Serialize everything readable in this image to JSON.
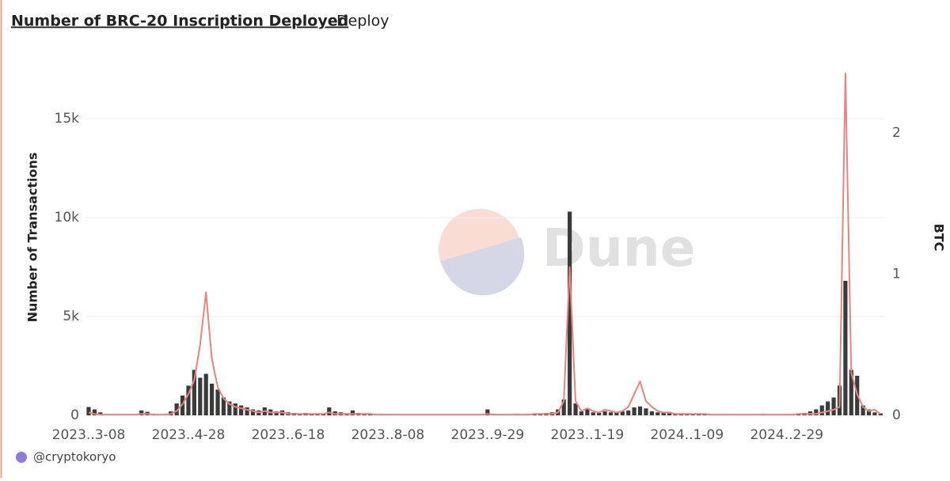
{
  "chart_data": {
    "type": "bar-line",
    "title": "Number of BRC-20 Inscription Deployed",
    "tab": "Deploy",
    "watermark": "Dune",
    "credit": "@cryptokoryo",
    "y_label": "Number of Transactions",
    "y2_label": "BTC",
    "categories": [
      "2023..3-08",
      null,
      null,
      null,
      null,
      null,
      null,
      null,
      null,
      null,
      null,
      null,
      null,
      null,
      null,
      null,
      null,
      "2023..4-28",
      null,
      null,
      null,
      null,
      null,
      null,
      null,
      null,
      null,
      null,
      null,
      null,
      null,
      null,
      null,
      null,
      "2023..6-18",
      null,
      null,
      null,
      null,
      null,
      null,
      null,
      null,
      null,
      null,
      null,
      null,
      null,
      null,
      null,
      null,
      "2023..8-08",
      null,
      null,
      null,
      null,
      null,
      null,
      null,
      null,
      null,
      null,
      null,
      null,
      null,
      null,
      null,
      null,
      "2023..9-29",
      null,
      null,
      null,
      null,
      null,
      null,
      null,
      null,
      null,
      null,
      null,
      null,
      null,
      null,
      null,
      null,
      "2023..1-19",
      null,
      null,
      null,
      null,
      null,
      null,
      null,
      null,
      null,
      null,
      null,
      null,
      null,
      null,
      null,
      null,
      "2024..1-09",
      null,
      null,
      null,
      null,
      null,
      null,
      null,
      null,
      null,
      null,
      null,
      null,
      null,
      null,
      null,
      null,
      "2024..2-29",
      null,
      null,
      null,
      null,
      null,
      null,
      null,
      null,
      null,
      null,
      null,
      null,
      null,
      null,
      null,
      null
    ],
    "series": [
      {
        "type": "bar",
        "color": "#3a3a3a",
        "values": [
          420,
          300,
          150,
          60,
          40,
          30,
          20,
          30,
          50,
          250,
          180,
          80,
          40,
          60,
          200,
          600,
          1000,
          1500,
          2300,
          1900,
          2100,
          1600,
          1300,
          900,
          700,
          600,
          500,
          400,
          300,
          250,
          400,
          300,
          200,
          250,
          150,
          120,
          100,
          120,
          80,
          100,
          90,
          400,
          200,
          150,
          100,
          250,
          120,
          90,
          80,
          60,
          70,
          60,
          50,
          40,
          50,
          40,
          30,
          40,
          30,
          40,
          30,
          40,
          50,
          30,
          40,
          50,
          40,
          60,
          300,
          80,
          50,
          60,
          50,
          80,
          60,
          80,
          100,
          80,
          120,
          150,
          300,
          800,
          10300,
          600,
          200,
          300,
          150,
          120,
          200,
          150,
          180,
          200,
          250,
          400,
          450,
          350,
          200,
          150,
          120,
          100,
          80,
          60,
          50,
          60,
          40,
          50,
          40,
          50,
          60,
          40,
          50,
          40,
          50,
          60,
          40,
          80,
          60,
          40,
          50,
          40,
          60,
          80,
          120,
          200,
          300,
          500,
          700,
          900,
          1500,
          6800,
          2300,
          2000,
          500,
          300,
          150,
          100
        ]
      },
      {
        "type": "line",
        "axis": "y2",
        "color": "#e8847f",
        "values": [
          0.02,
          0.01,
          0.005,
          0.005,
          0.005,
          0.005,
          0.005,
          0.005,
          0.005,
          0.01,
          0.01,
          0.005,
          0.005,
          0.005,
          0.01,
          0.03,
          0.08,
          0.15,
          0.25,
          0.5,
          0.87,
          0.4,
          0.2,
          0.12,
          0.08,
          0.06,
          0.05,
          0.04,
          0.03,
          0.02,
          0.03,
          0.02,
          0.02,
          0.02,
          0.01,
          0.01,
          0.01,
          0.01,
          0.01,
          0.01,
          0.01,
          0.02,
          0.01,
          0.01,
          0.01,
          0.01,
          0.01,
          0.01,
          0.01,
          0.005,
          0.005,
          0.005,
          0.005,
          0.005,
          0.005,
          0.005,
          0.005,
          0.005,
          0.005,
          0.005,
          0.005,
          0.005,
          0.005,
          0.005,
          0.005,
          0.005,
          0.005,
          0.005,
          0.01,
          0.005,
          0.005,
          0.005,
          0.005,
          0.005,
          0.005,
          0.005,
          0.01,
          0.01,
          0.01,
          0.01,
          0.02,
          0.1,
          1.05,
          0.1,
          0.03,
          0.05,
          0.03,
          0.02,
          0.04,
          0.03,
          0.02,
          0.03,
          0.06,
          0.15,
          0.24,
          0.1,
          0.06,
          0.03,
          0.02,
          0.02,
          0.01,
          0.01,
          0.01,
          0.01,
          0.01,
          0.01,
          0.005,
          0.005,
          0.005,
          0.005,
          0.005,
          0.005,
          0.005,
          0.005,
          0.005,
          0.005,
          0.005,
          0.005,
          0.005,
          0.005,
          0.005,
          0.01,
          0.01,
          0.01,
          0.01,
          0.02,
          0.03,
          0.04,
          0.06,
          2.42,
          0.3,
          0.15,
          0.06,
          0.03,
          0.04,
          0.01
        ]
      }
    ],
    "ylim": [
      0,
      18000
    ],
    "yticks": [
      0,
      {
        "value": 5000,
        "label": "5k"
      },
      {
        "value": 10000,
        "label": "10k"
      },
      {
        "value": 15000,
        "label": "15k"
      }
    ],
    "y2lim": [
      0,
      2.52
    ],
    "y2ticks": [
      0,
      1,
      2
    ],
    "grid": true
  }
}
